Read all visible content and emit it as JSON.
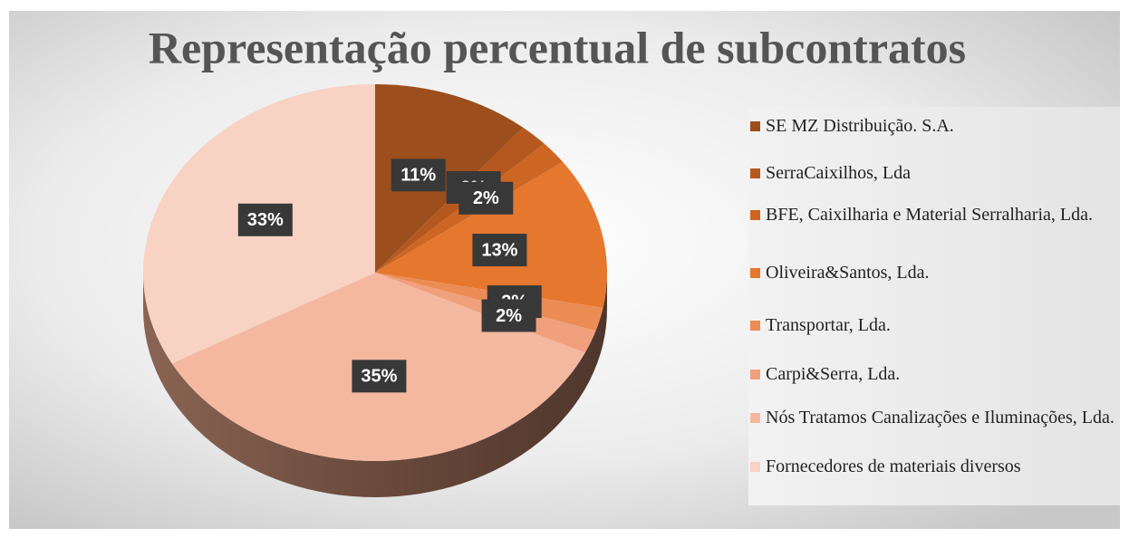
{
  "chart_data": {
    "type": "pie",
    "title": "Representação percentual de subcontratos",
    "categories": [
      "SE MZ Distribuição. S.A.",
      "SerraCaixilhos, Lda",
      "BFE, Caixilharia e Material Serralharia, Lda.",
      "Oliveira&Santos, Lda.",
      "Transportar, Lda.",
      "Carpi&Serra, Lda.",
      "Nós Tratamos Canalizações e Iluminações, Lda.",
      "Fornecedores de materiais diversos"
    ],
    "values": [
      11,
      2,
      2,
      13,
      2,
      2,
      35,
      33
    ],
    "value_labels": [
      "11%",
      "2%",
      "2%",
      "13%",
      "2%",
      "2%",
      "35%",
      "33%"
    ],
    "colors": [
      "#9c4e1c",
      "#b5581f",
      "#cc6622",
      "#e5772f",
      "#ec8c55",
      "#f0a07c",
      "#f4b8a0",
      "#f8d2c3"
    ],
    "legend": "right"
  }
}
